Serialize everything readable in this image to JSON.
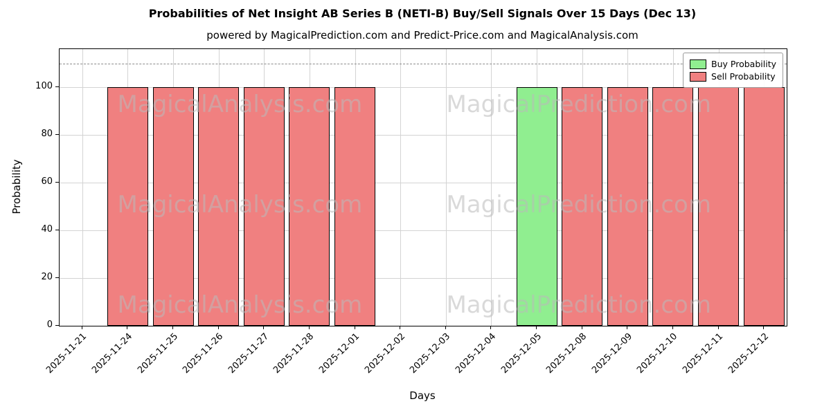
{
  "chart_data": {
    "type": "bar",
    "title": "Probabilities of Net Insight AB Series B (NETI-B) Buy/Sell Signals Over 15 Days (Dec 13)",
    "subtitle": "powered by MagicalPrediction.com and Predict-Price.com and MagicalAnalysis.com",
    "xlabel": "Days",
    "ylabel": "Probability",
    "categories": [
      "2025-11-21",
      "2025-11-24",
      "2025-11-25",
      "2025-11-26",
      "2025-11-27",
      "2025-11-28",
      "2025-12-01",
      "2025-12-02",
      "2025-12-03",
      "2025-12-04",
      "2025-12-05",
      "2025-12-08",
      "2025-12-09",
      "2025-12-10",
      "2025-12-11",
      "2025-12-12"
    ],
    "series": [
      {
        "name": "Buy Probability",
        "color": "#90EE90",
        "values": [
          0,
          0,
          0,
          0,
          0,
          0,
          0,
          0,
          0,
          0,
          100,
          0,
          0,
          0,
          0,
          0
        ]
      },
      {
        "name": "Sell Probability",
        "color": "#F08080",
        "values": [
          0,
          100,
          100,
          100,
          100,
          100,
          100,
          0,
          0,
          0,
          0,
          100,
          100,
          100,
          100,
          100
        ]
      }
    ],
    "ylim": [
      0,
      116
    ],
    "yticks": [
      0,
      20,
      40,
      60,
      80,
      100
    ],
    "dashed_line_y": 110,
    "grid": true,
    "legend_position": "upper right",
    "bar_edge_color": "#000000",
    "watermarks": [
      "MagicalAnalysis.com",
      "MagicalPrediction.com"
    ]
  }
}
